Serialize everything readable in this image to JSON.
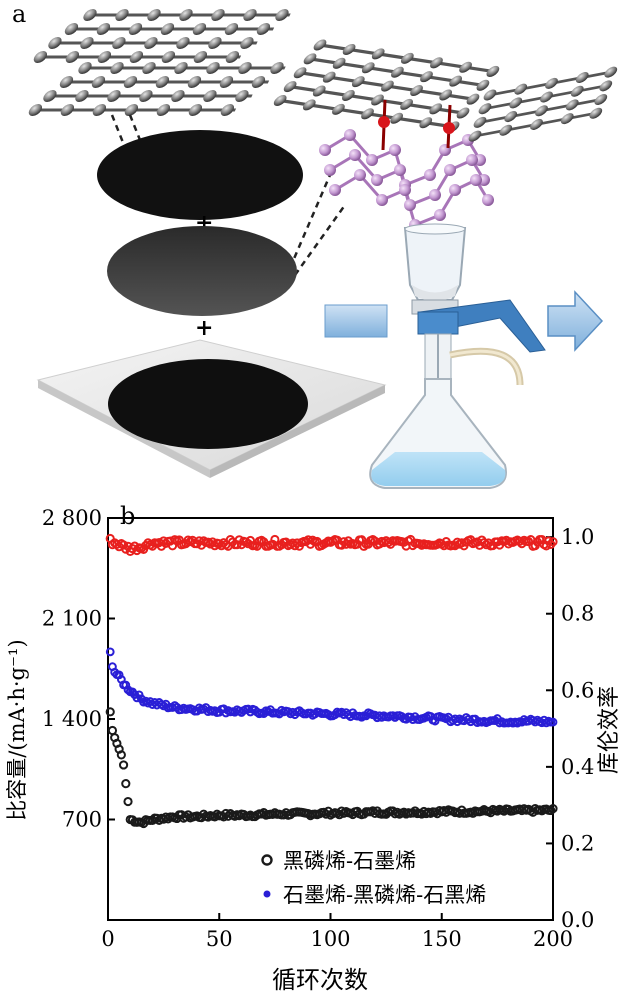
{
  "panel_a": {
    "label": "a",
    "plus_signs": [
      "+",
      "+"
    ]
  },
  "panel_b": {
    "label": "b"
  },
  "chart_data": {
    "type": "scatter",
    "xlabel": "循环次数",
    "ylabel_left": "比容量/(mA·h·g⁻¹)",
    "ylabel_right": "库伦效率",
    "xlim": [
      0,
      200
    ],
    "ylim_left": [
      0,
      2800
    ],
    "ylim_right": [
      0,
      1.05
    ],
    "x_ticks": [
      "0",
      "50",
      "100",
      "150",
      "200"
    ],
    "y_left_ticks": [
      "700",
      "1 400",
      "2 100",
      "2 800"
    ],
    "y_right_ticks": [
      "0.0",
      "0.2",
      "0.4",
      "0.6",
      "0.8",
      "1.0"
    ],
    "legend_position": "bottom-right",
    "colors": {
      "black": "#1a1a1a",
      "blue": "#2a1fd6",
      "red": "#e8201e"
    },
    "series": [
      {
        "name": "黑磷烯-石墨烯",
        "axis": "left",
        "color": "#1a1a1a",
        "points": [
          [
            1,
            1450
          ],
          [
            2,
            1320
          ],
          [
            3,
            1270
          ],
          [
            4,
            1230
          ],
          [
            5,
            1190
          ],
          [
            6,
            1150
          ],
          [
            7,
            1080
          ],
          [
            8,
            950
          ],
          [
            10,
            700
          ],
          [
            15,
            680
          ],
          [
            20,
            700
          ],
          [
            25,
            710
          ],
          [
            30,
            720
          ],
          [
            40,
            720
          ],
          [
            50,
            730
          ],
          [
            60,
            730
          ],
          [
            70,
            735
          ],
          [
            80,
            740
          ],
          [
            90,
            740
          ],
          [
            100,
            745
          ],
          [
            110,
            745
          ],
          [
            120,
            750
          ],
          [
            130,
            750
          ],
          [
            140,
            752
          ],
          [
            150,
            755
          ],
          [
            160,
            755
          ],
          [
            170,
            758
          ],
          [
            180,
            760
          ],
          [
            190,
            762
          ],
          [
            200,
            765
          ]
        ]
      },
      {
        "name": "石墨烯-黑磷烯-石黑烯",
        "axis": "left",
        "color": "#2a1fd6",
        "points": [
          [
            1,
            1860
          ],
          [
            2,
            1780
          ],
          [
            3,
            1730
          ],
          [
            5,
            1690
          ],
          [
            8,
            1630
          ],
          [
            10,
            1600
          ],
          [
            15,
            1540
          ],
          [
            20,
            1510
          ],
          [
            25,
            1495
          ],
          [
            30,
            1480
          ],
          [
            40,
            1470
          ],
          [
            50,
            1460
          ],
          [
            60,
            1455
          ],
          [
            70,
            1450
          ],
          [
            80,
            1445
          ],
          [
            90,
            1440
          ],
          [
            100,
            1435
          ],
          [
            110,
            1430
          ],
          [
            120,
            1425
          ],
          [
            130,
            1420
          ],
          [
            140,
            1410
          ],
          [
            150,
            1400
          ],
          [
            160,
            1395
          ],
          [
            170,
            1390
          ],
          [
            180,
            1385
          ],
          [
            190,
            1385
          ],
          [
            200,
            1380
          ]
        ]
      },
      {
        "name": "库伦效率",
        "axis": "right",
        "color": "#e8201e",
        "points": [
          [
            1,
            0.99
          ],
          [
            5,
            0.98
          ],
          [
            10,
            0.97
          ],
          [
            15,
            0.975
          ],
          [
            20,
            0.985
          ],
          [
            30,
            0.985
          ],
          [
            50,
            0.985
          ],
          [
            70,
            0.985
          ],
          [
            100,
            0.985
          ],
          [
            130,
            0.985
          ],
          [
            150,
            0.985
          ],
          [
            170,
            0.985
          ],
          [
            200,
            0.985
          ]
        ]
      }
    ]
  }
}
